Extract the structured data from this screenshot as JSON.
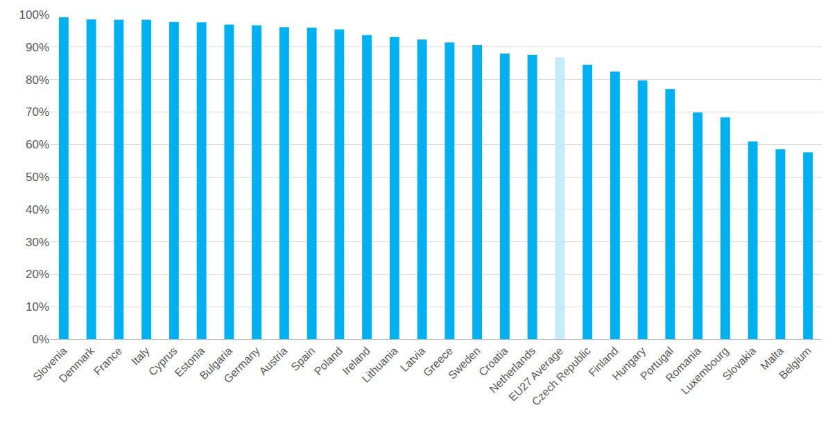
{
  "chart_data": {
    "type": "bar",
    "categories": [
      "Slovenia",
      "Denmark",
      "France",
      "Italy",
      "Cyprus",
      "Estonia",
      "Bulgaria",
      "Germany",
      "Austria",
      "Spain",
      "Poland",
      "Ireland",
      "Lithuania",
      "Latvia",
      "Greece",
      "Sweden",
      "Croatia",
      "Netherlands",
      "EU27 Average",
      "Czech Republic",
      "Finland",
      "Hungary",
      "Portugal",
      "Romania",
      "Luxembourg",
      "Slovakia",
      "Malta",
      "Belgium"
    ],
    "values": [
      99.2,
      98.5,
      98.4,
      98.4,
      97.7,
      97.6,
      96.9,
      96.7,
      96.1,
      96.0,
      95.4,
      93.7,
      93.1,
      92.3,
      91.4,
      90.6,
      88.0,
      87.6,
      86.8,
      84.5,
      82.4,
      79.7,
      77.1,
      69.8,
      68.3,
      60.9,
      58.5,
      57.6
    ],
    "colors": [
      "#00b0f0",
      "#00b0f0",
      "#00b0f0",
      "#00b0f0",
      "#00b0f0",
      "#00b0f0",
      "#00b0f0",
      "#00b0f0",
      "#00b0f0",
      "#00b0f0",
      "#00b0f0",
      "#00b0f0",
      "#00b0f0",
      "#00b0f0",
      "#00b0f0",
      "#00b0f0",
      "#00b0f0",
      "#00b0f0",
      "#c5ecfa",
      "#00b0f0",
      "#00b0f0",
      "#00b0f0",
      "#00b0f0",
      "#00b0f0",
      "#00b0f0",
      "#00b0f0",
      "#00b0f0",
      "#00b0f0"
    ],
    "ylim": [
      0,
      100
    ],
    "yticks": [
      {
        "value": 0,
        "label": "0%"
      },
      {
        "value": 10,
        "label": "10%"
      },
      {
        "value": 20,
        "label": "20%"
      },
      {
        "value": 30,
        "label": "30%"
      },
      {
        "value": 40,
        "label": "40%"
      },
      {
        "value": 50,
        "label": "50%"
      },
      {
        "value": 60,
        "label": "60%"
      },
      {
        "value": 70,
        "label": "70%"
      },
      {
        "value": 80,
        "label": "80%"
      },
      {
        "value": 90,
        "label": "90%"
      },
      {
        "value": 100,
        "label": "100%"
      }
    ],
    "grid": true
  }
}
